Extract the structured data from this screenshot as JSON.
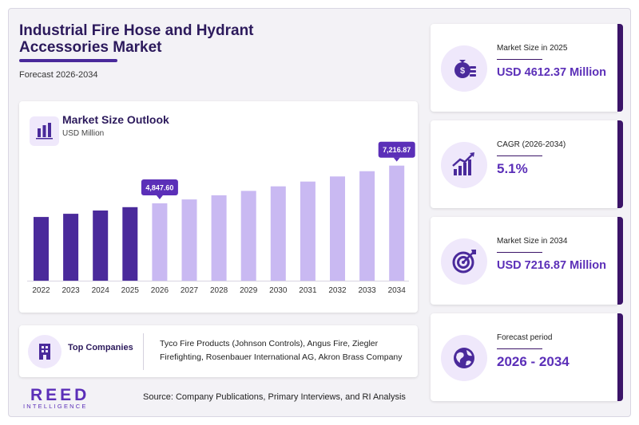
{
  "header": {
    "title": "Industrial Fire Hose and Hydrant Accessories Market",
    "subtitle": "Forecast 2026-2034"
  },
  "chart_panel": {
    "title": "Market Size Outlook",
    "unit": "USD Million"
  },
  "chart_data": {
    "type": "bar",
    "categories": [
      "2022",
      "2023",
      "2024",
      "2025",
      "2026",
      "2027",
      "2028",
      "2029",
      "2030",
      "2031",
      "2032",
      "2033",
      "2034"
    ],
    "values": [
      3993,
      4197,
      4400,
      4612.37,
      4847.6,
      5095,
      5355,
      5628,
      5915,
      6216,
      6533,
      6866,
      7216.87
    ],
    "historic_color": "#4a2a9b",
    "forecast_color": "#c9b9f2",
    "forecast_start": "2026",
    "data_labels": [
      {
        "category": "2026",
        "text": "4,847.60"
      },
      {
        "category": "2034",
        "text": "7,216.87"
      }
    ],
    "label_color": "#5b2fb8",
    "grid": false,
    "title": "",
    "xlabel": "",
    "ylabel": ""
  },
  "companies": {
    "label": "Top Companies",
    "text": "Tyco Fire Products (Johnson Controls), Angus Fire, Ziegler Firefighting, Rosenbauer International AG, Akron Brass Company"
  },
  "logo": {
    "main": "REED",
    "sub": "INTELLIGENCE"
  },
  "source": "Source: Company Publications, Primary Interviews, and RI Analysis",
  "stats": [
    {
      "label": "Market Size in 2025",
      "value": "USD 4612.37 Million",
      "icon": "money-bag-icon"
    },
    {
      "label": "CAGR (2026-2034)",
      "value": "5.1%",
      "icon": "growth-chart-icon"
    },
    {
      "label": "Market Size in 2034",
      "value": "USD 7216.87 Million",
      "icon": "target-icon"
    },
    {
      "label": "Forecast period",
      "value": "2026 - 2034",
      "icon": "globe-icon"
    }
  ],
  "colors": {
    "accent": "#5b2fb8",
    "dark": "#2c1a5c",
    "light": "#efe8fb"
  }
}
